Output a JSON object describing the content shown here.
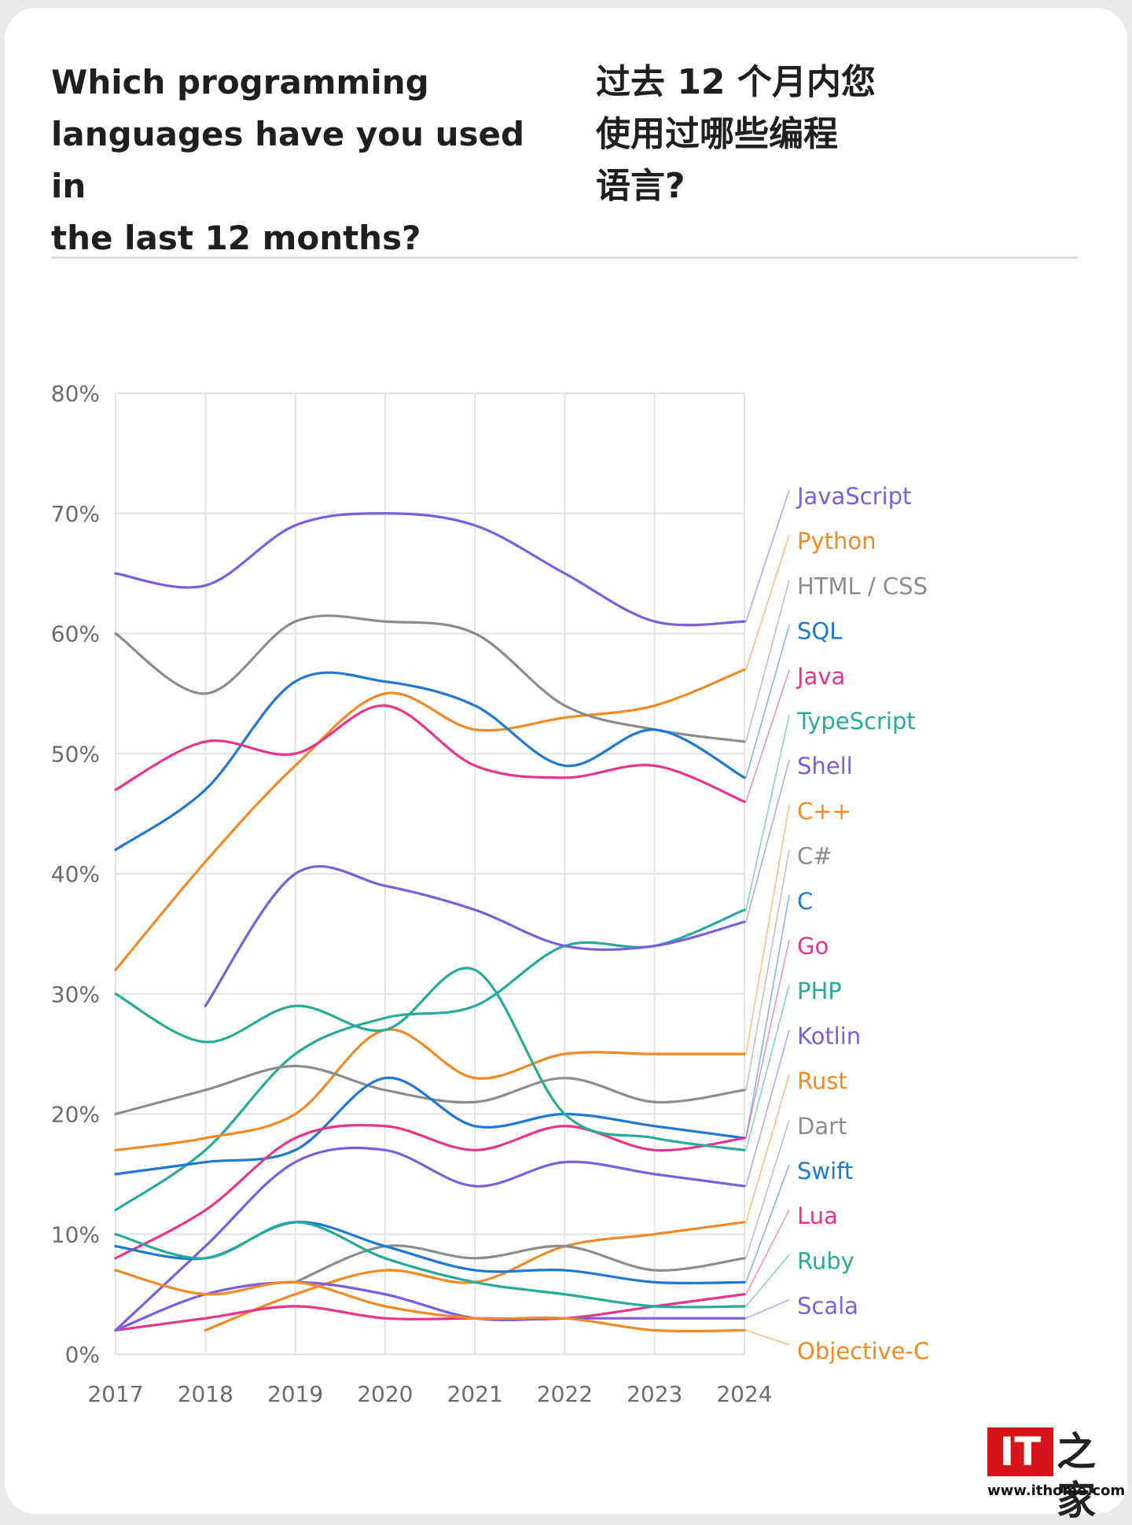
{
  "header": {
    "title_en": "Which programming\nlanguages have you used in\nthe last 12 months?",
    "title_zh": "过去 12 个月内您\n使用过哪些编程\n语言?"
  },
  "watermark": {
    "logo_text": "IT",
    "logo_zh": "之家",
    "url": "www.ithome.com"
  },
  "chart_data": {
    "type": "line",
    "x": [
      "2017",
      "2018",
      "2019",
      "2020",
      "2021",
      "2022",
      "2023",
      "2024"
    ],
    "ylim": [
      0,
      80
    ],
    "yticks": [
      "0%",
      "10%",
      "20%",
      "30%",
      "40%",
      "50%",
      "60%",
      "70%",
      "80%"
    ],
    "grid": true,
    "legend": "right",
    "series": [
      {
        "name": "JavaScript",
        "color": "#7b5ee0",
        "values": [
          65,
          64,
          69,
          70,
          69,
          65,
          61,
          61
        ]
      },
      {
        "name": "Python",
        "color": "#f08a24",
        "values": [
          32,
          41,
          49,
          55,
          52,
          53,
          54,
          57
        ]
      },
      {
        "name": "HTML / CSS",
        "color": "#8c8c8c",
        "values": [
          60,
          55,
          61,
          61,
          60,
          54,
          52,
          51
        ]
      },
      {
        "name": "SQL",
        "color": "#1f78d1",
        "values": [
          42,
          47,
          56,
          56,
          54,
          49,
          52,
          48
        ]
      },
      {
        "name": "Java",
        "color": "#e8358c",
        "values": [
          47,
          51,
          50,
          54,
          49,
          48,
          49,
          46
        ]
      },
      {
        "name": "TypeScript",
        "color": "#27ab99",
        "values": [
          12,
          17,
          25,
          28,
          29,
          34,
          34,
          37
        ]
      },
      {
        "name": "Shell",
        "color": "#7b5ee0",
        "values": [
          null,
          29,
          40,
          39,
          37,
          34,
          34,
          36
        ]
      },
      {
        "name": "C++",
        "color": "#f08a24",
        "values": [
          17,
          18,
          20,
          27,
          23,
          25,
          25,
          25
        ]
      },
      {
        "name": "C#",
        "color": "#8c8c8c",
        "values": [
          20,
          22,
          24,
          22,
          21,
          23,
          21,
          22
        ]
      },
      {
        "name": "C",
        "color": "#1f78d1",
        "values": [
          15,
          16,
          17,
          23,
          19,
          20,
          19,
          18
        ]
      },
      {
        "name": "Go",
        "color": "#e8358c",
        "values": [
          8,
          12,
          18,
          19,
          17,
          19,
          17,
          18
        ]
      },
      {
        "name": "PHP",
        "color": "#27ab99",
        "values": [
          30,
          26,
          29,
          27,
          32,
          20,
          18,
          17
        ]
      },
      {
        "name": "Kotlin",
        "color": "#7b5ee0",
        "values": [
          2,
          9,
          16,
          17,
          14,
          16,
          15,
          14
        ]
      },
      {
        "name": "Rust",
        "color": "#f08a24",
        "values": [
          null,
          2,
          5,
          7,
          6,
          9,
          10,
          11
        ]
      },
      {
        "name": "Dart",
        "color": "#8c8c8c",
        "values": [
          null,
          null,
          6,
          9,
          8,
          9,
          7,
          8
        ]
      },
      {
        "name": "Swift",
        "color": "#1f78d1",
        "values": [
          9,
          8,
          11,
          9,
          7,
          7,
          6,
          6
        ]
      },
      {
        "name": "Lua",
        "color": "#e8358c",
        "values": [
          2,
          3,
          4,
          3,
          3,
          3,
          4,
          5
        ]
      },
      {
        "name": "Ruby",
        "color": "#27ab99",
        "values": [
          10,
          8,
          11,
          8,
          6,
          5,
          4,
          4
        ]
      },
      {
        "name": "Scala",
        "color": "#7b5ee0",
        "values": [
          2,
          5,
          6,
          5,
          3,
          3,
          3,
          3
        ]
      },
      {
        "name": "Objective-C",
        "color": "#f08a24",
        "values": [
          7,
          5,
          6,
          4,
          3,
          3,
          2,
          2
        ]
      }
    ]
  }
}
